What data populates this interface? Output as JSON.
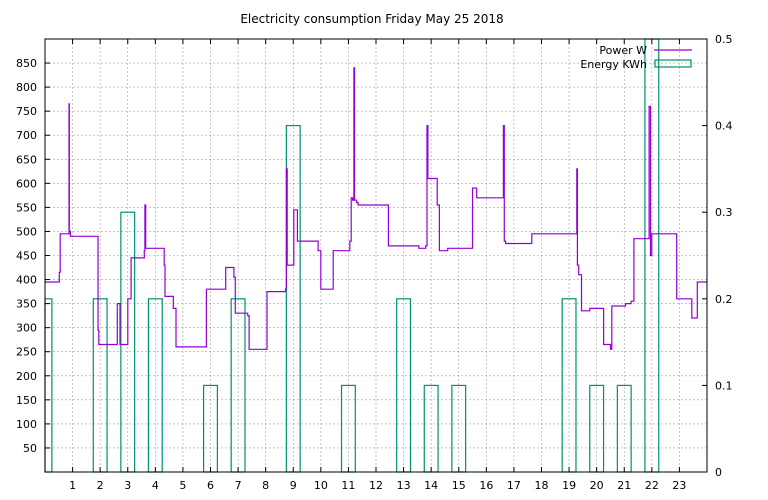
{
  "chart_data": {
    "type": "line",
    "title": "Electricity consumption Friday May 25 2018",
    "xlabel": "",
    "ylabel": "",
    "xlim": [
      0,
      24
    ],
    "ylim": [
      0,
      900
    ],
    "y2lim": [
      0,
      0.5
    ],
    "x_ticks": [
      1,
      2,
      3,
      4,
      5,
      6,
      7,
      8,
      9,
      10,
      11,
      12,
      13,
      14,
      15,
      16,
      17,
      18,
      19,
      20,
      21,
      22,
      23
    ],
    "y_ticks": [
      50,
      100,
      150,
      200,
      250,
      300,
      350,
      400,
      450,
      500,
      550,
      600,
      650,
      700,
      750,
      800,
      850
    ],
    "y2_ticks": [
      0,
      0.1,
      0.2,
      0.3,
      0.4,
      0.5
    ],
    "y2_tick_labels": [
      "0",
      "0.1",
      "0.2",
      "0.3",
      "0.4",
      "0.5"
    ],
    "grid": true,
    "legend_position": "top-right",
    "series": [
      {
        "name": "Power W",
        "type": "line",
        "axis": "left",
        "color": "#9400d3",
        "step": true,
        "points": [
          [
            0,
            395
          ],
          [
            0.5,
            395
          ],
          [
            0.52,
            415
          ],
          [
            0.55,
            495
          ],
          [
            0.85,
            495
          ],
          [
            0.87,
            765
          ],
          [
            0.88,
            500
          ],
          [
            0.92,
            490
          ],
          [
            1.9,
            490
          ],
          [
            1.92,
            295
          ],
          [
            1.95,
            265
          ],
          [
            2.6,
            265
          ],
          [
            2.62,
            350
          ],
          [
            2.7,
            350
          ],
          [
            2.72,
            265
          ],
          [
            2.95,
            265
          ],
          [
            3.0,
            360
          ],
          [
            3.05,
            360
          ],
          [
            3.12,
            445
          ],
          [
            3.55,
            445
          ],
          [
            3.6,
            460
          ],
          [
            3.62,
            555
          ],
          [
            3.65,
            465
          ],
          [
            4.3,
            465
          ],
          [
            4.32,
            430
          ],
          [
            4.35,
            365
          ],
          [
            4.6,
            365
          ],
          [
            4.65,
            340
          ],
          [
            4.75,
            260
          ],
          [
            5.5,
            260
          ],
          [
            5.55,
            260
          ],
          [
            5.8,
            260
          ],
          [
            5.85,
            380
          ],
          [
            6.5,
            380
          ],
          [
            6.55,
            425
          ],
          [
            6.8,
            425
          ],
          [
            6.85,
            405
          ],
          [
            6.9,
            330
          ],
          [
            7.3,
            330
          ],
          [
            7.35,
            325
          ],
          [
            7.4,
            255
          ],
          [
            8.0,
            255
          ],
          [
            8.05,
            375
          ],
          [
            8.7,
            375
          ],
          [
            8.72,
            380
          ],
          [
            8.75,
            630
          ],
          [
            8.78,
            430
          ],
          [
            9.0,
            430
          ],
          [
            9.02,
            545
          ],
          [
            9.1,
            545
          ],
          [
            9.15,
            480
          ],
          [
            9.85,
            480
          ],
          [
            9.9,
            460
          ],
          [
            10.0,
            380
          ],
          [
            10.4,
            380
          ],
          [
            10.45,
            460
          ],
          [
            11.0,
            460
          ],
          [
            11.05,
            480
          ],
          [
            11.1,
            570
          ],
          [
            11.15,
            565
          ],
          [
            11.2,
            840
          ],
          [
            11.22,
            565
          ],
          [
            11.3,
            560
          ],
          [
            11.35,
            555
          ],
          [
            12.4,
            555
          ],
          [
            12.45,
            470
          ],
          [
            13.5,
            470
          ],
          [
            13.55,
            465
          ],
          [
            13.75,
            465
          ],
          [
            13.8,
            470
          ],
          [
            13.85,
            720
          ],
          [
            13.88,
            610
          ],
          [
            14.2,
            610
          ],
          [
            14.22,
            555
          ],
          [
            14.3,
            460
          ],
          [
            14.55,
            460
          ],
          [
            14.6,
            465
          ],
          [
            15.45,
            465
          ],
          [
            15.5,
            590
          ],
          [
            15.62,
            590
          ],
          [
            15.65,
            570
          ],
          [
            16.6,
            570
          ],
          [
            16.62,
            720
          ],
          [
            16.65,
            480
          ],
          [
            16.7,
            475
          ],
          [
            17.6,
            475
          ],
          [
            17.65,
            495
          ],
          [
            19.25,
            495
          ],
          [
            19.28,
            630
          ],
          [
            19.3,
            430
          ],
          [
            19.35,
            410
          ],
          [
            19.45,
            335
          ],
          [
            19.7,
            335
          ],
          [
            19.75,
            340
          ],
          [
            20.2,
            340
          ],
          [
            20.25,
            265
          ],
          [
            20.45,
            265
          ],
          [
            20.5,
            255
          ],
          [
            20.55,
            345
          ],
          [
            21.0,
            345
          ],
          [
            21.05,
            350
          ],
          [
            21.2,
            350
          ],
          [
            21.25,
            355
          ],
          [
            21.35,
            485
          ],
          [
            21.85,
            485
          ],
          [
            21.9,
            760
          ],
          [
            21.95,
            450
          ],
          [
            22.0,
            495
          ],
          [
            22.85,
            495
          ],
          [
            22.9,
            360
          ],
          [
            23.4,
            360
          ],
          [
            23.45,
            320
          ],
          [
            23.6,
            320
          ],
          [
            23.65,
            395
          ],
          [
            24,
            395
          ]
        ]
      },
      {
        "name": "Energy KWh",
        "type": "bar",
        "axis": "right",
        "color": "#009070",
        "x": [
          0,
          1,
          2,
          3,
          4,
          5,
          6,
          7,
          8,
          9,
          10,
          11,
          12,
          13,
          14,
          15,
          16,
          17,
          18,
          19,
          20,
          21,
          22,
          23
        ],
        "values": [
          0.2,
          0,
          0.2,
          0.3,
          0.2,
          0,
          0.1,
          0.2,
          0,
          0.4,
          0,
          0.1,
          0,
          0.2,
          0.1,
          0.1,
          0,
          0,
          0,
          0.2,
          0.1,
          0.1,
          0.5,
          0
        ]
      }
    ]
  }
}
